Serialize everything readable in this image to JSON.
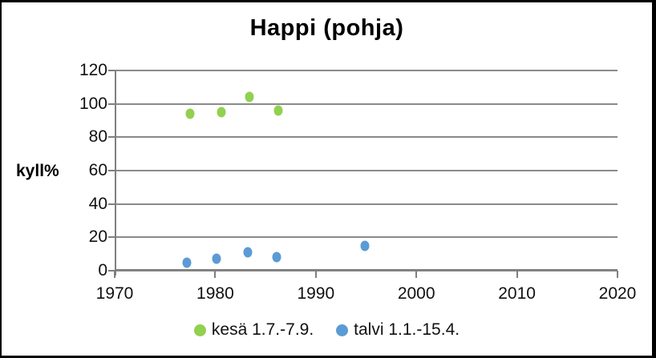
{
  "chart_data": {
    "type": "scatter",
    "title": "Happi (pohja)",
    "ylabel": "kyll%",
    "xlabel": "",
    "xlim": [
      1970,
      2020
    ],
    "ylim": [
      0,
      120
    ],
    "xticks": [
      1970,
      1980,
      1990,
      2000,
      2010,
      2020
    ],
    "yticks": [
      0,
      20,
      40,
      60,
      80,
      100,
      120
    ],
    "grid": "horizontal-only",
    "legend_position": "bottom-center",
    "colors": {
      "gridline": "#8a8a8a",
      "axis": "#7f7f7f",
      "title_text": "#000000",
      "tick_text": "#111111",
      "kesa_green": "#92D050",
      "talvi_blue": "#5B9BD5",
      "frame_border": "#000000",
      "background": "#ffffff"
    },
    "series": [
      {
        "name": "kesä 1.7.-7.9.",
        "color": "#92D050",
        "points": [
          {
            "x": 1977.5,
            "y": 94
          },
          {
            "x": 1980.6,
            "y": 95
          },
          {
            "x": 1983.4,
            "y": 104
          },
          {
            "x": 1986.3,
            "y": 96
          }
        ]
      },
      {
        "name": "talvi 1.1.-15.4.",
        "color": "#5B9BD5",
        "points": [
          {
            "x": 1977.2,
            "y": 5
          },
          {
            "x": 1980.1,
            "y": 7
          },
          {
            "x": 1983.2,
            "y": 11
          },
          {
            "x": 1986.1,
            "y": 8
          },
          {
            "x": 1994.9,
            "y": 15
          }
        ]
      }
    ]
  }
}
